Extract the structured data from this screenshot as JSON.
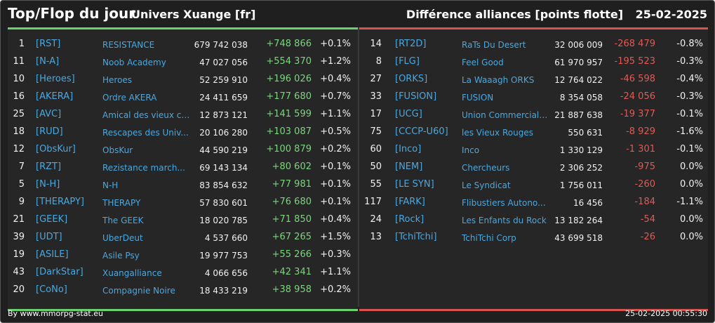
{
  "header": {
    "title": "Top/Flop du jour",
    "subtitle": "Univers Xuange [fr]",
    "right_title": "Différence alliances [points flotte]",
    "date": "25-02-2025"
  },
  "colors": {
    "positive": "#7bd67d",
    "negative": "#e05a55",
    "link": "#4aa8e0",
    "top_bar": "#67d46b",
    "flop_bar": "#d9534f"
  },
  "top": [
    {
      "rank": "1",
      "tag": "[RST]",
      "name": "RESISTANCE",
      "points": "679 742 038",
      "diff": "+748 866",
      "pct": "+0.1%"
    },
    {
      "rank": "11",
      "tag": "[N-A]",
      "name": "Noob Academy",
      "points": "47 027 056",
      "diff": "+554 370",
      "pct": "+1.2%"
    },
    {
      "rank": "10",
      "tag": "[Heroes]",
      "name": "Heroes",
      "points": "52 259 910",
      "diff": "+196 026",
      "pct": "+0.4%"
    },
    {
      "rank": "16",
      "tag": "[AKERA]",
      "name": "Ordre AKERA",
      "points": "24 411 659",
      "diff": "+177 680",
      "pct": "+0.7%"
    },
    {
      "rank": "25",
      "tag": "[AVC]",
      "name": "Amical des vieux co...",
      "points": "12 873 121",
      "diff": "+141 599",
      "pct": "+1.1%"
    },
    {
      "rank": "18",
      "tag": "[RUD]",
      "name": "Rescapes des Univ...",
      "points": "20 106 280",
      "diff": "+103 087",
      "pct": "+0.5%"
    },
    {
      "rank": "12",
      "tag": "[ObsKur]",
      "name": "ObsKur",
      "points": "44 590 219",
      "diff": "+100 879",
      "pct": "+0.2%"
    },
    {
      "rank": "7",
      "tag": "[RZT]",
      "name": "Rezistance march...",
      "points": "69 143 134",
      "diff": "+80 602",
      "pct": "+0.1%"
    },
    {
      "rank": "5",
      "tag": "[N-H]",
      "name": "N-H",
      "points": "83 854 632",
      "diff": "+77 981",
      "pct": "+0.1%"
    },
    {
      "rank": "9",
      "tag": "[THERAPY]",
      "name": "THERAPY",
      "points": "57 830 601",
      "diff": "+76 680",
      "pct": "+0.1%"
    },
    {
      "rank": "21",
      "tag": "[GEEK]",
      "name": "The GEEK",
      "points": "18 020 785",
      "diff": "+71 850",
      "pct": "+0.4%"
    },
    {
      "rank": "39",
      "tag": "[UDT]",
      "name": "UberDeut",
      "points": "4 537 660",
      "diff": "+67 265",
      "pct": "+1.5%"
    },
    {
      "rank": "19",
      "tag": "[ASILE]",
      "name": "Asile Psy",
      "points": "19 977 753",
      "diff": "+55 266",
      "pct": "+0.3%"
    },
    {
      "rank": "43",
      "tag": "[DarkStar]",
      "name": "Xuangalliance",
      "points": "4 066 656",
      "diff": "+42 341",
      "pct": "+1.1%"
    },
    {
      "rank": "20",
      "tag": "[CoNo]",
      "name": "Compagnie Noire",
      "points": "18 433 219",
      "diff": "+38 958",
      "pct": "+0.2%"
    }
  ],
  "flop": [
    {
      "rank": "14",
      "tag": "[RT2D]",
      "name": "RaTs Du Desert",
      "points": "32 006 009",
      "diff": "-268 479",
      "pct": "-0.8%"
    },
    {
      "rank": "8",
      "tag": "[FLG]",
      "name": "Feel Good",
      "points": "61 970 957",
      "diff": "-195 523",
      "pct": "-0.3%"
    },
    {
      "rank": "27",
      "tag": "[ORKS]",
      "name": "La Waaagh ORKS",
      "points": "12 764 022",
      "diff": "-46 598",
      "pct": "-0.4%"
    },
    {
      "rank": "33",
      "tag": "[FUSION]",
      "name": "FUSION",
      "points": "8 354 058",
      "diff": "-24 056",
      "pct": "-0.3%"
    },
    {
      "rank": "17",
      "tag": "[UCG]",
      "name": "Union Commerciale...",
      "points": "21 887 638",
      "diff": "-19 377",
      "pct": "-0.1%"
    },
    {
      "rank": "75",
      "tag": "[CCCP-U60]",
      "name": "les Vieux Rouges",
      "points": "550 631",
      "diff": "-8 929",
      "pct": "-1.6%"
    },
    {
      "rank": "60",
      "tag": "[Inco]",
      "name": "Inco",
      "points": "1 330 129",
      "diff": "-1 301",
      "pct": "-0.1%"
    },
    {
      "rank": "50",
      "tag": "[NEM]",
      "name": "Chercheurs",
      "points": "2 306 252",
      "diff": "-975",
      "pct": "0.0%"
    },
    {
      "rank": "55",
      "tag": "[LE SYN]",
      "name": "Le Syndicat",
      "points": "1 756 011",
      "diff": "-260",
      "pct": "0.0%"
    },
    {
      "rank": "117",
      "tag": "[FARK]",
      "name": "Flibustiers Autono...",
      "points": "16 456",
      "diff": "-184",
      "pct": "-1.1%"
    },
    {
      "rank": "24",
      "tag": "[Rock]",
      "name": "Les Enfants du Rock",
      "points": "13 182 264",
      "diff": "-54",
      "pct": "0.0%"
    },
    {
      "rank": "13",
      "tag": "[TchiTchi]",
      "name": "TchiTchi Corp",
      "points": "43 699 518",
      "diff": "-26",
      "pct": "0.0%"
    }
  ],
  "footer": {
    "credit": "By www.mmorpg-stat.eu",
    "timestamp": "25-02-2025 00:55:30"
  }
}
